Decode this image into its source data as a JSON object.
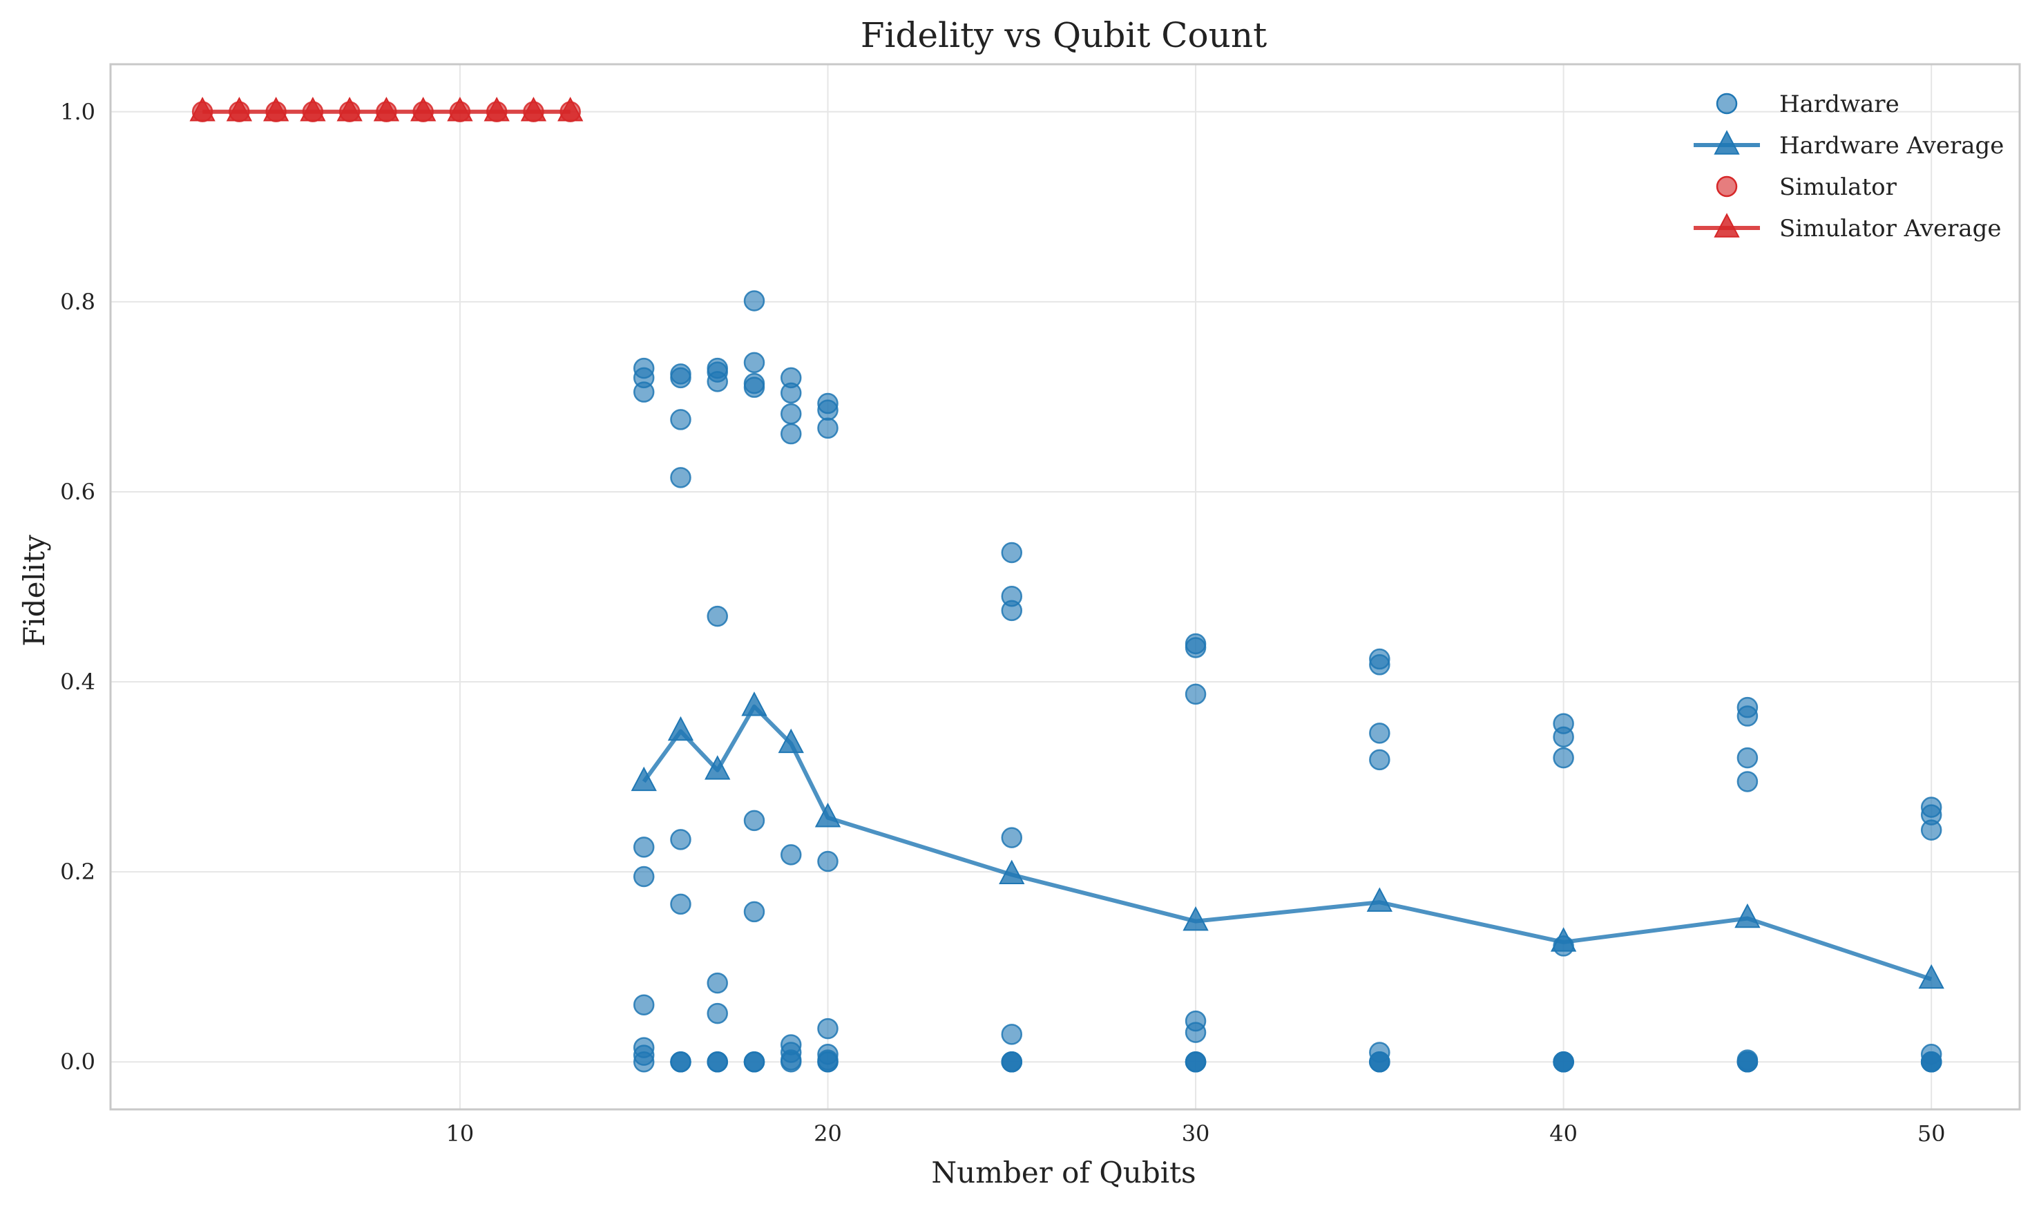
{
  "chart_data": {
    "type": "scatter",
    "title": "Fidelity vs Qubit Count",
    "xlabel": "Number of Qubits",
    "ylabel": "Fidelity",
    "xlim": [
      0.5,
      52.4
    ],
    "ylim": [
      -0.05,
      1.05
    ],
    "xticks": [
      10,
      20,
      30,
      40,
      50
    ],
    "yticks": [
      0.0,
      0.2,
      0.4,
      0.6,
      0.8,
      1.0
    ],
    "ytick_labels": [
      "0.0",
      "0.2",
      "0.4",
      "0.6",
      "0.8",
      "1.0"
    ],
    "grid": true,
    "legend_position": "top-right",
    "colors": {
      "hardware": "#1f77b4",
      "simulator": "#d62728"
    },
    "series": [
      {
        "name": "Hardware",
        "kind": "scatter",
        "color": "#1f77b4",
        "points": [
          [
            15,
            0.73
          ],
          [
            15,
            0.72
          ],
          [
            15,
            0.705
          ],
          [
            15,
            0.226
          ],
          [
            15,
            0.195
          ],
          [
            15,
            0.06
          ],
          [
            15,
            0.015
          ],
          [
            15,
            0.007
          ],
          [
            15,
            0.0
          ],
          [
            16,
            0.724
          ],
          [
            16,
            0.72
          ],
          [
            16,
            0.676
          ],
          [
            16,
            0.615
          ],
          [
            16,
            0.234
          ],
          [
            16,
            0.166
          ],
          [
            16,
            0.0
          ],
          [
            16,
            0.0
          ],
          [
            16,
            0.0
          ],
          [
            17,
            0.73
          ],
          [
            17,
            0.726
          ],
          [
            17,
            0.716
          ],
          [
            17,
            0.469
          ],
          [
            17,
            0.083
          ],
          [
            17,
            0.051
          ],
          [
            17,
            0.0
          ],
          [
            17,
            0.0
          ],
          [
            17,
            0.0
          ],
          [
            18,
            0.801
          ],
          [
            18,
            0.736
          ],
          [
            18,
            0.714
          ],
          [
            18,
            0.71
          ],
          [
            18,
            0.254
          ],
          [
            18,
            0.158
          ],
          [
            18,
            0.0
          ],
          [
            18,
            0.0
          ],
          [
            18,
            0.0
          ],
          [
            19,
            0.72
          ],
          [
            19,
            0.704
          ],
          [
            19,
            0.682
          ],
          [
            19,
            0.661
          ],
          [
            19,
            0.218
          ],
          [
            19,
            0.018
          ],
          [
            19,
            0.01
          ],
          [
            19,
            0.002
          ],
          [
            19,
            0.0
          ],
          [
            20,
            0.693
          ],
          [
            20,
            0.686
          ],
          [
            20,
            0.667
          ],
          [
            20,
            0.211
          ],
          [
            20,
            0.035
          ],
          [
            20,
            0.008
          ],
          [
            20,
            0.002
          ],
          [
            20,
            0.0
          ],
          [
            20,
            0.0
          ],
          [
            25,
            0.536
          ],
          [
            25,
            0.49
          ],
          [
            25,
            0.475
          ],
          [
            25,
            0.236
          ],
          [
            25,
            0.029
          ],
          [
            25,
            0.0
          ],
          [
            25,
            0.0
          ],
          [
            25,
            0.0
          ],
          [
            25,
            0.0
          ],
          [
            30,
            0.44
          ],
          [
            30,
            0.436
          ],
          [
            30,
            0.387
          ],
          [
            30,
            0.043
          ],
          [
            30,
            0.031
          ],
          [
            30,
            0.0
          ],
          [
            30,
            0.0
          ],
          [
            30,
            0.0
          ],
          [
            30,
            0.0
          ],
          [
            35,
            0.424
          ],
          [
            35,
            0.418
          ],
          [
            35,
            0.346
          ],
          [
            35,
            0.318
          ],
          [
            35,
            0.01
          ],
          [
            35,
            0.0
          ],
          [
            35,
            0.0
          ],
          [
            35,
            0.0
          ],
          [
            35,
            0.0
          ],
          [
            40,
            0.356
          ],
          [
            40,
            0.342
          ],
          [
            40,
            0.32
          ],
          [
            40,
            0.122
          ],
          [
            40,
            0.0
          ],
          [
            40,
            0.0
          ],
          [
            40,
            0.0
          ],
          [
            40,
            0.0
          ],
          [
            40,
            0.0
          ],
          [
            45,
            0.373
          ],
          [
            45,
            0.364
          ],
          [
            45,
            0.32
          ],
          [
            45,
            0.295
          ],
          [
            45,
            0.002
          ],
          [
            45,
            0.0
          ],
          [
            45,
            0.0
          ],
          [
            45,
            0.0
          ],
          [
            45,
            0.0
          ],
          [
            50,
            0.268
          ],
          [
            50,
            0.26
          ],
          [
            50,
            0.244
          ],
          [
            50,
            0.008
          ],
          [
            50,
            0.0
          ],
          [
            50,
            0.0
          ],
          [
            50,
            0.0
          ],
          [
            50,
            0.0
          ],
          [
            50,
            0.0
          ]
        ]
      },
      {
        "name": "Hardware Average",
        "kind": "line",
        "color": "#1f77b4",
        "x": [
          15,
          16,
          17,
          18,
          19,
          20,
          25,
          30,
          35,
          40,
          45,
          50
        ],
        "y": [
          0.295,
          0.348,
          0.307,
          0.374,
          0.335,
          0.257,
          0.197,
          0.148,
          0.168,
          0.126,
          0.151,
          0.087
        ]
      },
      {
        "name": "Simulator",
        "kind": "scatter",
        "color": "#d62728",
        "points": [
          [
            3,
            1.0
          ],
          [
            4,
            1.0
          ],
          [
            5,
            1.0
          ],
          [
            6,
            1.0
          ],
          [
            7,
            1.0
          ],
          [
            8,
            1.0
          ],
          [
            9,
            1.0
          ],
          [
            10,
            1.0
          ],
          [
            11,
            1.0
          ],
          [
            12,
            1.0
          ],
          [
            13,
            1.0
          ]
        ]
      },
      {
        "name": "Simulator Average",
        "kind": "line",
        "color": "#d62728",
        "x": [
          3,
          4,
          5,
          6,
          7,
          8,
          9,
          10,
          11,
          12,
          13
        ],
        "y": [
          1.0,
          1.0,
          1.0,
          1.0,
          1.0,
          1.0,
          1.0,
          1.0,
          1.0,
          1.0,
          1.0
        ]
      }
    ],
    "legend": [
      {
        "label": "Hardware",
        "marker": "circle",
        "line": false,
        "color": "#1f77b4"
      },
      {
        "label": "Hardware Average",
        "marker": "triangle",
        "line": true,
        "color": "#1f77b4"
      },
      {
        "label": "Simulator",
        "marker": "circle",
        "line": false,
        "color": "#d62728"
      },
      {
        "label": "Simulator Average",
        "marker": "triangle",
        "line": true,
        "color": "#d62728"
      }
    ]
  }
}
